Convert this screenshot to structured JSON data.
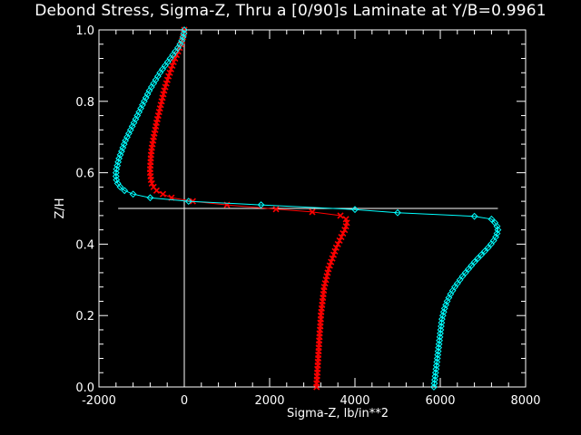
{
  "chart_data": {
    "type": "line",
    "title": "Debond Stress, Sigma-Z, Thru a [0/90]s Laminate at Y/B=0.9961",
    "xlabel": "Sigma-Z,  lb/in**2",
    "ylabel": "Z/H",
    "xlim": [
      -2000,
      8000
    ],
    "ylim": [
      0.0,
      1.0
    ],
    "xticks": [
      "-2000",
      "0",
      "2000",
      "4000",
      "6000",
      "8000"
    ],
    "yticks": [
      "0.0",
      "0.2",
      "0.4",
      "0.6",
      "0.8",
      "1.0"
    ],
    "grid": false,
    "reference_lines": [
      {
        "orientation": "vertical",
        "x": 0,
        "y_range": [
          0.0,
          1.0
        ]
      },
      {
        "orientation": "horizontal",
        "y": 0.5,
        "x_range": [
          -1550,
          7350
        ]
      }
    ],
    "series": [
      {
        "marker": "x",
        "color": "#ff0000",
        "points": [
          [
            3100,
            0.0
          ],
          [
            3100,
            0.01
          ],
          [
            3110,
            0.02
          ],
          [
            3110,
            0.03
          ],
          [
            3120,
            0.04
          ],
          [
            3120,
            0.05
          ],
          [
            3130,
            0.06
          ],
          [
            3130,
            0.07
          ],
          [
            3140,
            0.08
          ],
          [
            3140,
            0.09
          ],
          [
            3150,
            0.1
          ],
          [
            3150,
            0.11
          ],
          [
            3160,
            0.12
          ],
          [
            3160,
            0.13
          ],
          [
            3170,
            0.14
          ],
          [
            3170,
            0.15
          ],
          [
            3180,
            0.16
          ],
          [
            3190,
            0.17
          ],
          [
            3190,
            0.18
          ],
          [
            3200,
            0.19
          ],
          [
            3200,
            0.2
          ],
          [
            3210,
            0.21
          ],
          [
            3220,
            0.22
          ],
          [
            3230,
            0.23
          ],
          [
            3240,
            0.24
          ],
          [
            3250,
            0.25
          ],
          [
            3260,
            0.26
          ],
          [
            3270,
            0.27
          ],
          [
            3280,
            0.28
          ],
          [
            3300,
            0.29
          ],
          [
            3320,
            0.3
          ],
          [
            3340,
            0.31
          ],
          [
            3360,
            0.32
          ],
          [
            3380,
            0.33
          ],
          [
            3410,
            0.34
          ],
          [
            3440,
            0.35
          ],
          [
            3470,
            0.36
          ],
          [
            3500,
            0.37
          ],
          [
            3530,
            0.38
          ],
          [
            3560,
            0.39
          ],
          [
            3600,
            0.4
          ],
          [
            3640,
            0.41
          ],
          [
            3680,
            0.42
          ],
          [
            3720,
            0.43
          ],
          [
            3760,
            0.44
          ],
          [
            3790,
            0.45
          ],
          [
            3810,
            0.46
          ],
          [
            3790,
            0.47
          ],
          [
            3660,
            0.48
          ],
          [
            3000,
            0.49
          ],
          [
            2150,
            0.498
          ],
          [
            1000,
            0.51
          ],
          [
            200,
            0.52
          ],
          [
            -300,
            0.53
          ],
          [
            -500,
            0.54
          ],
          [
            -650,
            0.55
          ],
          [
            -720,
            0.56
          ],
          [
            -760,
            0.57
          ],
          [
            -780,
            0.58
          ],
          [
            -790,
            0.59
          ],
          [
            -800,
            0.6
          ],
          [
            -800,
            0.61
          ],
          [
            -795,
            0.62
          ],
          [
            -790,
            0.63
          ],
          [
            -785,
            0.64
          ],
          [
            -780,
            0.65
          ],
          [
            -770,
            0.66
          ],
          [
            -760,
            0.67
          ],
          [
            -745,
            0.68
          ],
          [
            -730,
            0.69
          ],
          [
            -715,
            0.7
          ],
          [
            -700,
            0.71
          ],
          [
            -680,
            0.72
          ],
          [
            -665,
            0.73
          ],
          [
            -650,
            0.74
          ],
          [
            -630,
            0.75
          ],
          [
            -610,
            0.76
          ],
          [
            -590,
            0.77
          ],
          [
            -570,
            0.78
          ],
          [
            -550,
            0.79
          ],
          [
            -530,
            0.8
          ],
          [
            -510,
            0.81
          ],
          [
            -490,
            0.82
          ],
          [
            -470,
            0.83
          ],
          [
            -445,
            0.84
          ],
          [
            -420,
            0.85
          ],
          [
            -395,
            0.86
          ],
          [
            -370,
            0.87
          ],
          [
            -340,
            0.88
          ],
          [
            -310,
            0.89
          ],
          [
            -280,
            0.9
          ],
          [
            -250,
            0.91
          ],
          [
            -215,
            0.92
          ],
          [
            -180,
            0.93
          ],
          [
            -145,
            0.94
          ],
          [
            -110,
            0.95
          ],
          [
            -80,
            0.96
          ],
          [
            -50,
            0.97
          ],
          [
            -30,
            0.98
          ],
          [
            -10,
            0.99
          ],
          [
            0,
            1.0
          ]
        ]
      },
      {
        "marker": "diamond",
        "color": "#00ffff",
        "points": [
          [
            5850,
            0.0
          ],
          [
            5860,
            0.01
          ],
          [
            5870,
            0.02
          ],
          [
            5880,
            0.03
          ],
          [
            5890,
            0.04
          ],
          [
            5900,
            0.05
          ],
          [
            5910,
            0.06
          ],
          [
            5920,
            0.07
          ],
          [
            5930,
            0.08
          ],
          [
            5940,
            0.09
          ],
          [
            5950,
            0.1
          ],
          [
            5960,
            0.11
          ],
          [
            5970,
            0.12
          ],
          [
            5980,
            0.13
          ],
          [
            5990,
            0.14
          ],
          [
            6000,
            0.15
          ],
          [
            6010,
            0.16
          ],
          [
            6020,
            0.17
          ],
          [
            6030,
            0.18
          ],
          [
            6040,
            0.19
          ],
          [
            6060,
            0.2
          ],
          [
            6080,
            0.21
          ],
          [
            6100,
            0.22
          ],
          [
            6130,
            0.23
          ],
          [
            6160,
            0.24
          ],
          [
            6200,
            0.25
          ],
          [
            6240,
            0.26
          ],
          [
            6290,
            0.27
          ],
          [
            6340,
            0.28
          ],
          [
            6400,
            0.29
          ],
          [
            6460,
            0.3
          ],
          [
            6520,
            0.31
          ],
          [
            6590,
            0.32
          ],
          [
            6660,
            0.33
          ],
          [
            6730,
            0.34
          ],
          [
            6800,
            0.35
          ],
          [
            6880,
            0.36
          ],
          [
            6960,
            0.37
          ],
          [
            7040,
            0.38
          ],
          [
            7120,
            0.39
          ],
          [
            7190,
            0.4
          ],
          [
            7250,
            0.41
          ],
          [
            7300,
            0.42
          ],
          [
            7330,
            0.43
          ],
          [
            7350,
            0.44
          ],
          [
            7330,
            0.45
          ],
          [
            7280,
            0.46
          ],
          [
            7200,
            0.47
          ],
          [
            6800,
            0.478
          ],
          [
            5000,
            0.488
          ],
          [
            4000,
            0.497
          ],
          [
            1800,
            0.51
          ],
          [
            100,
            0.52
          ],
          [
            -800,
            0.53
          ],
          [
            -1200,
            0.54
          ],
          [
            -1400,
            0.55
          ],
          [
            -1500,
            0.56
          ],
          [
            -1560,
            0.57
          ],
          [
            -1590,
            0.58
          ],
          [
            -1600,
            0.59
          ],
          [
            -1600,
            0.6
          ],
          [
            -1590,
            0.61
          ],
          [
            -1570,
            0.62
          ],
          [
            -1550,
            0.63
          ],
          [
            -1530,
            0.64
          ],
          [
            -1500,
            0.65
          ],
          [
            -1470,
            0.66
          ],
          [
            -1440,
            0.67
          ],
          [
            -1410,
            0.68
          ],
          [
            -1380,
            0.69
          ],
          [
            -1340,
            0.7
          ],
          [
            -1300,
            0.71
          ],
          [
            -1260,
            0.72
          ],
          [
            -1220,
            0.73
          ],
          [
            -1180,
            0.74
          ],
          [
            -1140,
            0.75
          ],
          [
            -1100,
            0.76
          ],
          [
            -1060,
            0.77
          ],
          [
            -1020,
            0.78
          ],
          [
            -980,
            0.79
          ],
          [
            -940,
            0.8
          ],
          [
            -900,
            0.81
          ],
          [
            -860,
            0.82
          ],
          [
            -820,
            0.83
          ],
          [
            -770,
            0.84
          ],
          [
            -720,
            0.85
          ],
          [
            -670,
            0.86
          ],
          [
            -620,
            0.87
          ],
          [
            -570,
            0.88
          ],
          [
            -510,
            0.89
          ],
          [
            -450,
            0.9
          ],
          [
            -390,
            0.91
          ],
          [
            -330,
            0.92
          ],
          [
            -270,
            0.93
          ],
          [
            -210,
            0.94
          ],
          [
            -150,
            0.95
          ],
          [
            -100,
            0.96
          ],
          [
            -60,
            0.97
          ],
          [
            -30,
            0.98
          ],
          [
            -10,
            0.99
          ],
          [
            0,
            1.0
          ]
        ]
      }
    ]
  }
}
